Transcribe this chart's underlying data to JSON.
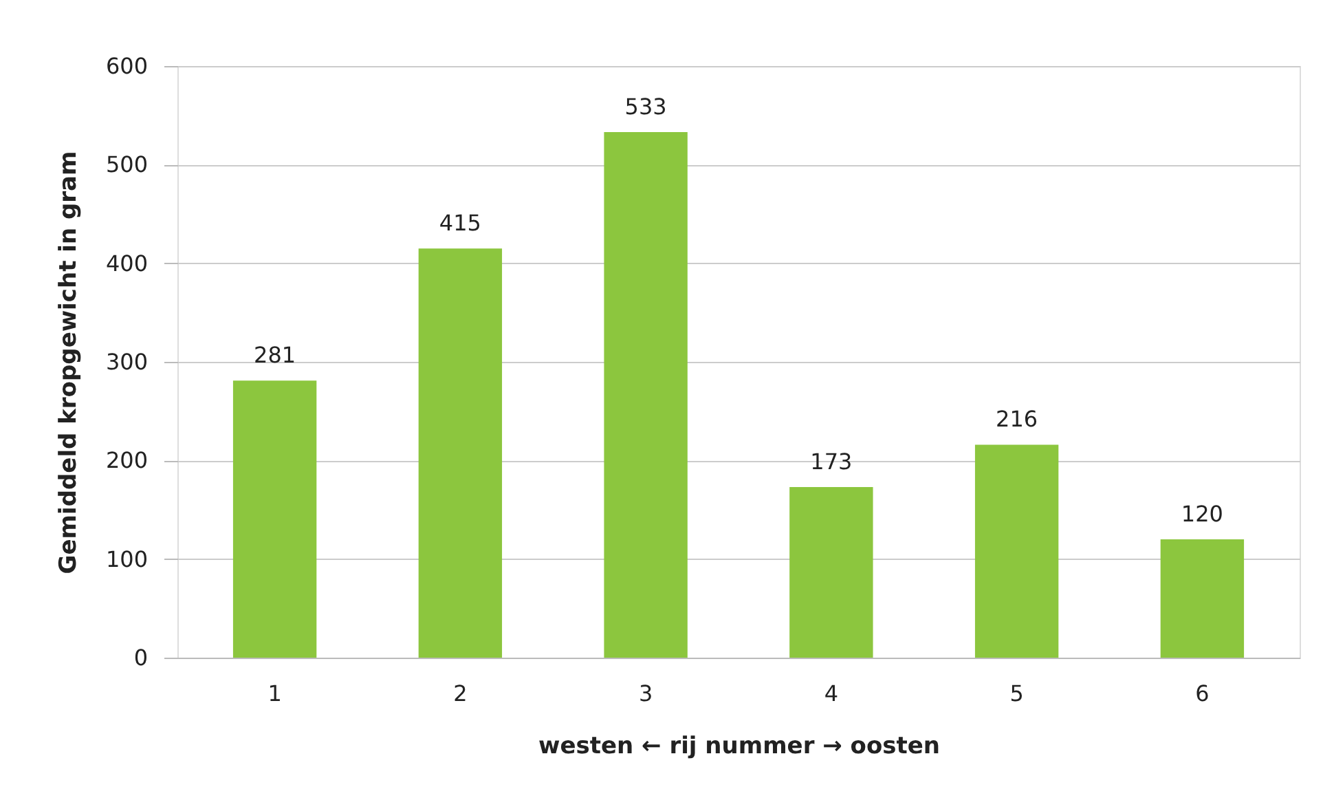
{
  "chart_data": {
    "type": "bar",
    "xlabel": "westen ← rij nummer → oosten",
    "ylabel": "Gemiddeld kropgewicht in gram",
    "categories": [
      "1",
      "2",
      "3",
      "4",
      "5",
      "6"
    ],
    "values": [
      281,
      415,
      533,
      173,
      216,
      120
    ],
    "color": "#8cc63e",
    "ylim": [
      0,
      600
    ],
    "yticks": [
      0,
      100,
      200,
      300,
      400,
      500,
      600
    ],
    "grid": "y",
    "data_labels": true
  }
}
